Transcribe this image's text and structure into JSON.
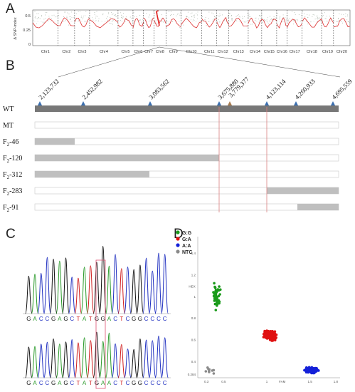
{
  "panels": {
    "a": "A",
    "b": "B",
    "c": "C",
    "d": "D"
  },
  "panel_a": {
    "ylabel": "Δ SNP-index",
    "yticks": [
      "0.5",
      "0.25",
      "0"
    ],
    "chromosomes": [
      "Chr1",
      "Chr2",
      "Chr3",
      "Chr4",
      "Chr5",
      "Chr6",
      "Chr7",
      "Chr8",
      "Chr9",
      "Chr10",
      "Chr11",
      "Chr12",
      "Chr13",
      "Chr14",
      "Chr15",
      "Chr16",
      "Chr17",
      "Chr18",
      "Chr19",
      "Chr20"
    ],
    "highlight_chromosome": "Chr8"
  },
  "panel_b": {
    "markers": [
      "2,123,732",
      "2,452,982",
      "3,083,562",
      "3,675,880",
      "3,779,377",
      "4,123,114",
      "4,260,933",
      "4,695,559"
    ],
    "rows": [
      {
        "label": "WT",
        "sub": ""
      },
      {
        "label": "MT",
        "sub": ""
      },
      {
        "label": "F",
        "sub": "2",
        "suffix": "-46"
      },
      {
        "label": "F",
        "sub": "2",
        "suffix": "-120"
      },
      {
        "label": "F",
        "sub": "2",
        "suffix": "-312"
      },
      {
        "label": "F",
        "sub": "2",
        "suffix": "-283"
      },
      {
        "label": "F",
        "sub": "2",
        "suffix": "-91"
      }
    ],
    "colors": {
      "wt_bar": "#777777",
      "recomb_bar": "#bfbfbf",
      "boundary_line": "#d98080",
      "marker": "#3b6fb0",
      "marker_alt": "#a87c4f"
    }
  },
  "panel_c": {
    "sequence": "GACCGAGCTATGGACTCGGCCCC",
    "sequence2": "GACCGAGCTATGAACTCGGCCCC"
  },
  "chart_data": {
    "type": "scatter",
    "legend": [
      "G:G",
      "G:A",
      "A:A",
      "NTC"
    ],
    "legend_position": "top-left",
    "xlabel": "FAM",
    "ylabel": "HEX",
    "xticks": [
      "0.3",
      "0.5",
      "1",
      "1.5",
      "1.8"
    ],
    "yticks": [
      "1.4",
      "1.2",
      "1",
      "0.8",
      "0.6",
      "0.4",
      "0.284"
    ],
    "colors": {
      "G:G": "#1a9a1a",
      "G:A": "#e01010",
      "A:A": "#1420d8",
      "NTC": "#8a8a8a"
    },
    "series": [
      {
        "name": "G:G",
        "center": [
          0.42,
          1.0
        ],
        "spread": [
          0.04,
          0.1
        ],
        "n": 45
      },
      {
        "name": "G:A",
        "center": [
          1.04,
          0.64
        ],
        "spread": [
          0.06,
          0.04
        ],
        "n": 170
      },
      {
        "name": "A:A",
        "center": [
          1.52,
          0.32
        ],
        "spread": [
          0.07,
          0.025
        ],
        "n": 120
      },
      {
        "name": "NTC",
        "center": [
          0.34,
          0.32
        ],
        "spread": [
          0.05,
          0.03
        ],
        "n": 9
      }
    ]
  }
}
